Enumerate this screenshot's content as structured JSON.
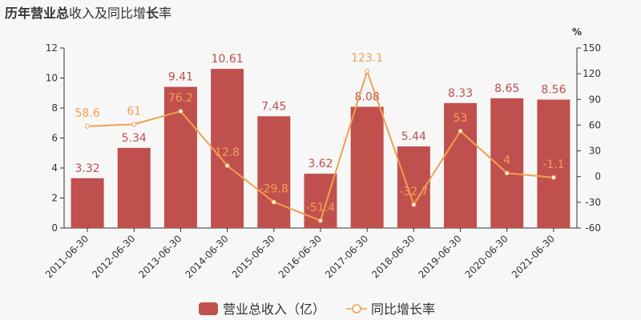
{
  "chart_data": {
    "type": "bar",
    "title_parts": [
      {
        "text": "历年",
        "bold": true
      },
      {
        "text": "营业总",
        "bold": true
      },
      {
        "text": "收入及同比增",
        "bold": false
      },
      {
        "text": "长",
        "bold": true
      },
      {
        "text": "率",
        "bold": false
      }
    ],
    "categories": [
      "2011-06-30",
      "2012-06-30",
      "2013-06-30",
      "2014-06-30",
      "2015-06-30",
      "2016-06-30",
      "2017-06-30",
      "2018-06-30",
      "2019-06-30",
      "2020-06-30",
      "2021-06-30"
    ],
    "series": [
      {
        "name": "营业总收入（亿）",
        "type": "bar",
        "axis": "left",
        "color": "#c0504d",
        "values": [
          3.32,
          5.34,
          9.41,
          10.61,
          7.45,
          3.62,
          8.08,
          5.44,
          8.33,
          8.65,
          8.56
        ]
      },
      {
        "name": "同比增长率",
        "type": "line",
        "axis": "right",
        "color": "#f0a050",
        "values": [
          58.6,
          61,
          76.2,
          12.8,
          -29.8,
          -51.4,
          123.1,
          -32.7,
          53,
          4,
          -1.1
        ]
      }
    ],
    "y_left": {
      "min": 0,
      "max": 12,
      "ticks": [
        0,
        2,
        4,
        6,
        8,
        10,
        12
      ]
    },
    "y_right": {
      "min": -60,
      "max": 150,
      "ticks": [
        -60,
        -30,
        0,
        30,
        60,
        90,
        120,
        150
      ],
      "unit": "%"
    },
    "legend": {
      "position": "bottom-center",
      "items": [
        "营业总收入（亿）",
        "同比增长率"
      ]
    }
  }
}
